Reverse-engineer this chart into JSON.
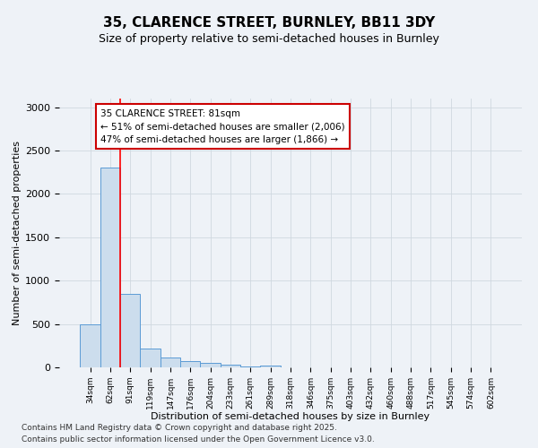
{
  "title1": "35, CLARENCE STREET, BURNLEY, BB11 3DY",
  "title2": "Size of property relative to semi-detached houses in Burnley",
  "xlabel": "Distribution of semi-detached houses by size in Burnley",
  "ylabel": "Number of semi-detached properties",
  "categories": [
    "34sqm",
    "62sqm",
    "91sqm",
    "119sqm",
    "147sqm",
    "176sqm",
    "204sqm",
    "233sqm",
    "261sqm",
    "289sqm",
    "318sqm",
    "346sqm",
    "375sqm",
    "403sqm",
    "432sqm",
    "460sqm",
    "488sqm",
    "517sqm",
    "545sqm",
    "574sqm",
    "602sqm"
  ],
  "values": [
    500,
    2300,
    850,
    220,
    110,
    70,
    50,
    30,
    15,
    25,
    5,
    0,
    0,
    0,
    0,
    0,
    0,
    0,
    0,
    0,
    0
  ],
  "bar_color": "#ccdded",
  "bar_edge_color": "#5b9bd5",
  "grid_color": "#d0d8e0",
  "red_line_x": 1.5,
  "annotation_text": "35 CLARENCE STREET: 81sqm\n← 51% of semi-detached houses are smaller (2,006)\n47% of semi-detached houses are larger (1,866) →",
  "ylim": [
    0,
    3100
  ],
  "yticks": [
    0,
    500,
    1000,
    1500,
    2000,
    2500,
    3000
  ],
  "footer1": "Contains HM Land Registry data © Crown copyright and database right 2025.",
  "footer2": "Contains public sector information licensed under the Open Government Licence v3.0.",
  "fig_bg": "#eef2f7",
  "plot_bg": "#eef2f7"
}
